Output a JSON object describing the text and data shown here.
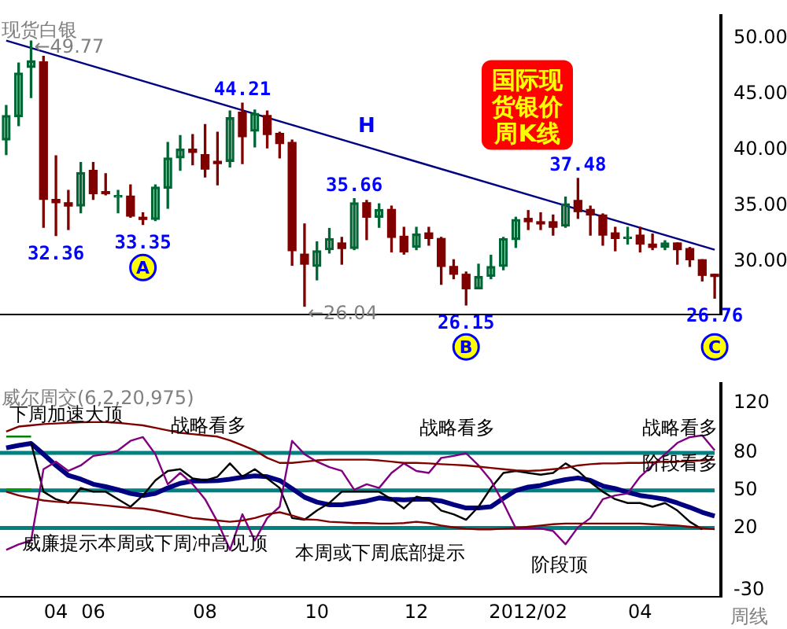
{
  "chart_data": [
    {
      "type": "candlestick",
      "title": "现货白银",
      "subtitle": "国际现货银价周K线",
      "categories": [
        null,
        null,
        null,
        null,
        "04",
        null,
        null,
        "06",
        null,
        null,
        null,
        null,
        null,
        null,
        null,
        null,
        "08",
        null,
        null,
        null,
        null,
        null,
        null,
        null,
        null,
        "10",
        null,
        null,
        null,
        null,
        null,
        null,
        null,
        "12",
        null,
        null,
        null,
        null,
        null,
        null,
        null,
        null,
        "2012/02",
        null,
        null,
        null,
        null,
        null,
        null,
        null,
        null,
        "04",
        null,
        null,
        null,
        null,
        null,
        null
      ],
      "ohlc": [
        [
          40.9,
          44.0,
          39.6,
          43.1
        ],
        [
          43.0,
          47.8,
          42.2,
          46.9
        ],
        [
          47.4,
          49.77,
          44.7,
          48.0
        ],
        [
          47.9,
          48.4,
          33.1,
          35.6
        ],
        [
          35.6,
          39.5,
          32.36,
          35.3
        ],
        [
          35.3,
          36.4,
          32.9,
          35.0
        ],
        [
          35.0,
          38.9,
          34.4,
          38.0
        ],
        [
          38.2,
          38.9,
          35.6,
          36.1
        ],
        [
          36.3,
          37.9,
          36.0,
          36.1
        ],
        [
          35.8,
          36.4,
          34.4,
          35.9
        ],
        [
          35.9,
          36.9,
          34.0,
          34.1
        ],
        [
          34.0,
          34.4,
          33.35,
          33.8
        ],
        [
          33.8,
          36.9,
          33.7,
          36.7
        ],
        [
          36.6,
          40.7,
          34.8,
          39.3
        ],
        [
          39.3,
          41.3,
          38.2,
          40.1
        ],
        [
          40.1,
          41.4,
          38.7,
          39.8
        ],
        [
          39.6,
          42.3,
          37.6,
          38.3
        ],
        [
          39.0,
          41.6,
          36.9,
          38.8
        ],
        [
          39.0,
          43.5,
          38.5,
          42.9
        ],
        [
          43.4,
          44.21,
          38.8,
          41.2
        ],
        [
          41.7,
          43.6,
          40.3,
          43.3
        ],
        [
          43.1,
          43.5,
          40.2,
          41.4
        ],
        [
          41.5,
          41.6,
          39.3,
          40.6
        ],
        [
          40.7,
          40.9,
          29.7,
          31.0
        ],
        [
          30.7,
          33.4,
          26.04,
          29.8
        ],
        [
          29.6,
          31.8,
          28.4,
          31.0
        ],
        [
          31.1,
          33.0,
          30.8,
          32.1
        ],
        [
          31.7,
          32.2,
          29.8,
          31.2
        ],
        [
          31.2,
          35.66,
          31.1,
          35.3
        ],
        [
          35.3,
          35.5,
          32.0,
          34.0
        ],
        [
          34.0,
          35.2,
          33.1,
          34.7
        ],
        [
          34.7,
          35.0,
          30.9,
          32.2
        ],
        [
          32.3,
          33.1,
          30.7,
          30.9
        ],
        [
          31.3,
          33.1,
          31.1,
          32.5
        ],
        [
          32.6,
          33.1,
          31.5,
          32.1
        ],
        [
          32.1,
          32.2,
          28.0,
          29.6
        ],
        [
          29.6,
          30.2,
          28.5,
          28.9
        ],
        [
          28.9,
          29.1,
          26.15,
          27.6
        ],
        [
          27.6,
          29.8,
          27.6,
          28.7
        ],
        [
          28.7,
          30.6,
          28.5,
          29.6
        ],
        [
          29.6,
          32.2,
          29.3,
          32.1
        ],
        [
          32.0,
          34.0,
          31.3,
          33.8
        ],
        [
          33.9,
          34.6,
          32.9,
          33.6
        ],
        [
          33.6,
          34.4,
          32.9,
          33.4
        ],
        [
          33.6,
          34.2,
          32.4,
          33.1
        ],
        [
          33.2,
          35.8,
          33.1,
          35.2
        ],
        [
          35.5,
          37.48,
          33.9,
          34.5
        ],
        [
          34.7,
          35.0,
          32.4,
          34.2
        ],
        [
          34.2,
          34.3,
          31.5,
          32.4
        ],
        [
          32.6,
          33.1,
          31.0,
          32.1
        ],
        [
          32.1,
          33.1,
          31.6,
          32.2
        ],
        [
          32.4,
          33.1,
          30.9,
          31.6
        ],
        [
          31.6,
          32.5,
          31.1,
          31.3
        ],
        [
          31.3,
          31.9,
          31.1,
          31.7
        ],
        [
          31.7,
          31.7,
          29.8,
          31.1
        ],
        [
          31.2,
          31.3,
          29.6,
          30.2
        ],
        [
          30.2,
          30.2,
          28.3,
          28.8
        ],
        [
          28.9,
          28.9,
          26.76,
          28.7
        ]
      ],
      "colors": [
        "#006633",
        "#006633",
        "#006633",
        "#800000",
        "#800000",
        "#800000",
        "#006633",
        "#800000",
        "#800000",
        "#006633",
        "#800000",
        "#800000",
        "#006633",
        "#006633",
        "#006633",
        "#800000",
        "#800000",
        "#800000",
        "#006633",
        "#800000",
        "#006633",
        "#800000",
        "#800000",
        "#800000",
        "#800000",
        "#006633",
        "#006633",
        "#800000",
        "#006633",
        "#800000",
        "#006633",
        "#800000",
        "#800000",
        "#006633",
        "#800000",
        "#800000",
        "#800000",
        "#800000",
        "#006633",
        "#006633",
        "#006633",
        "#006633",
        "#800000",
        "#800000",
        "#800000",
        "#006633",
        "#800000",
        "#800000",
        "#800000",
        "#800000",
        "#006633",
        "#800000",
        "#800000",
        "#006633",
        "#800000",
        "#800000",
        "#800000",
        "#800000"
      ],
      "series": [
        {
          "type": "line",
          "color": "#000080",
          "values": [
            49.8,
            null,
            null,
            null,
            null,
            null,
            null,
            null,
            null,
            null,
            null,
            null,
            null,
            null,
            null,
            null,
            null,
            null,
            null,
            null,
            null,
            null,
            null,
            null,
            null,
            null,
            null,
            null,
            null,
            null,
            null,
            null,
            null,
            null,
            null,
            null,
            null,
            null,
            null,
            null,
            null,
            null,
            null,
            null,
            null,
            null,
            null,
            null,
            null,
            null,
            null,
            null,
            null,
            null,
            null,
            null,
            null,
            31.1
          ]
        }
      ],
      "ylim": [
        25.3,
        52
      ],
      "yticks": [
        {
          "value": 30,
          "label": "30.00"
        },
        {
          "value": 35,
          "label": "35.00"
        },
        {
          "value": 40,
          "label": "40.00"
        },
        {
          "value": 45,
          "label": "45.00"
        },
        {
          "value": 50,
          "label": "50.00"
        }
      ],
      "tick_labels": "y",
      "grid": false,
      "legend": false,
      "marker": "none",
      "annotations": [
        "←49.77",
        {
          "text": "32.36",
          "y": 32.36
        },
        {
          "text": "33.35",
          "y": 33.35
        },
        {
          "text": "44.21",
          "y": 44.21
        },
        "←26.04",
        {
          "text": "35.66",
          "y": 35.66
        },
        {
          "text": "26.15",
          "y": 26.15
        },
        {
          "text": "37.48",
          "y": 37.48
        },
        {
          "text": "26.76",
          "y": 26.76
        },
        "H",
        "A",
        "B",
        "C"
      ]
    },
    {
      "type": "line",
      "title": "威尔周交(6,2,20,975)",
      "categories": [
        null,
        null,
        null,
        null,
        "04",
        null,
        null,
        "06",
        null,
        null,
        null,
        null,
        null,
        null,
        null,
        null,
        "08",
        null,
        null,
        null,
        null,
        null,
        null,
        null,
        null,
        "10",
        null,
        null,
        null,
        null,
        null,
        null,
        null,
        "12",
        null,
        null,
        null,
        null,
        null,
        null,
        null,
        null,
        "2012/02",
        null,
        null,
        null,
        null,
        null,
        null,
        null,
        null,
        "04",
        null,
        null,
        null,
        null,
        null,
        null
      ],
      "series": [
        {
          "color": "#000080",
          "values": [
            84,
            86,
            87.5,
            79,
            70,
            62,
            59,
            55,
            53,
            50.6,
            47.6,
            46,
            47.6,
            52,
            55.7,
            57.5,
            57.5,
            57.8,
            59,
            60.5,
            61.7,
            61,
            58,
            51.5,
            44.6,
            40.7,
            38.6,
            38.6,
            40,
            41.6,
            44,
            43,
            42.5,
            43,
            43,
            41.6,
            38.6,
            36,
            36,
            37,
            43.7,
            50,
            52.7,
            54,
            56.6,
            58.7,
            60,
            58,
            53.6,
            51.5,
            48.5,
            46,
            44.6,
            43,
            40,
            36.5,
            32.6,
            29.6
          ]
        },
        {
          "color": "#000000",
          "values": [
            null,
            null,
            88,
            49,
            43,
            40,
            52,
            49,
            49,
            43,
            37,
            46,
            58,
            65.6,
            67,
            59.6,
            58,
            61,
            71.6,
            61,
            67,
            59.6,
            52,
            28,
            26.6,
            34,
            40,
            49,
            49,
            49,
            49,
            43,
            35.6,
            45,
            43,
            34,
            31,
            26.6,
            37,
            52,
            64,
            65.6,
            64,
            62.6,
            64,
            71.6,
            65.6,
            56.6,
            49,
            43,
            40,
            40,
            37,
            40,
            34,
            25,
            19,
            null
          ]
        },
        {
          "color": "#800080",
          "values": [
            2.6,
            7,
            10,
            67,
            73,
            65.6,
            70,
            77.6,
            79,
            82,
            89.6,
            92.6,
            79,
            55,
            64,
            55,
            43,
            25,
            2.6,
            31,
            10,
            28,
            37,
            89.6,
            79,
            73,
            68.6,
            65.6,
            50.6,
            55,
            52,
            64,
            71.6,
            65.6,
            64,
            76,
            77.6,
            79.7,
            70,
            58,
            40,
            19.7,
            19.7,
            19.7,
            17.6,
            7,
            20.6,
            28,
            43,
            46,
            47.6,
            61,
            70,
            79,
            88,
            92.6,
            94,
            82
          ]
        },
        {
          "color": "#800000",
          "values": [
            97,
            101,
            102,
            103,
            103.5,
            104,
            104.5,
            104.6,
            104.6,
            104,
            103,
            102,
            100,
            98,
            96,
            95,
            94,
            93,
            90,
            86,
            82,
            76,
            72,
            72,
            73,
            74,
            74.6,
            74.6,
            74.6,
            74.6,
            74,
            73,
            72,
            72,
            71.6,
            71,
            70.5,
            70,
            69,
            68,
            67,
            66,
            65.6,
            66,
            67,
            68,
            70,
            71,
            71.6,
            71.6,
            72,
            72,
            72.5,
            73,
            73,
            73.5,
            74,
            74.6
          ]
        },
        {
          "color": "#800000",
          "values": [
            49,
            46,
            44,
            42,
            41,
            40.5,
            40,
            39,
            38,
            37,
            36,
            35.6,
            34,
            32,
            30,
            28,
            27,
            26,
            25,
            26,
            28,
            31,
            32.6,
            30,
            27,
            26.6,
            25,
            24.5,
            24,
            24,
            23.6,
            23.6,
            24,
            25,
            24,
            22,
            20.5,
            19.5,
            19,
            19,
            19.5,
            20,
            21,
            22,
            23,
            23.6,
            23.6,
            23.6,
            23.6,
            23.6,
            23.6,
            23.6,
            23,
            22.5,
            22,
            21,
            20,
            19
          ]
        },
        {
          "color": "#008000",
          "values": [
            93,
            93,
            93,
            null,
            null,
            null,
            null,
            null,
            null,
            null,
            null,
            null,
            null,
            null,
            null,
            null,
            null,
            null,
            null,
            null,
            null,
            null,
            null,
            null,
            null,
            null,
            null,
            null,
            null,
            null,
            null,
            null,
            null,
            null,
            null,
            null,
            null,
            null,
            null,
            null,
            null,
            null,
            null,
            null,
            null,
            null,
            null,
            null,
            null,
            null,
            null,
            null,
            null,
            null,
            null,
            null,
            null,
            null
          ]
        },
        {
          "color": "#00a000",
          "values": [
            51,
            51,
            51,
            null,
            null,
            null,
            null,
            null,
            null,
            null,
            null,
            null,
            null,
            null,
            null,
            null,
            null,
            null,
            null,
            null,
            null,
            null,
            null,
            null,
            null,
            null,
            null,
            null,
            null,
            null,
            null,
            null,
            null,
            null,
            null,
            null,
            null,
            null,
            null,
            null,
            null,
            null,
            null,
            null,
            null,
            null,
            null,
            null,
            null,
            null,
            null,
            null,
            null,
            null,
            null,
            null,
            null,
            null
          ]
        }
      ],
      "ylim": [
        -35,
        135
      ],
      "yticks": [
        120,
        80,
        50,
        20,
        -30
      ],
      "ref_lines": [
        {
          "axis": "y",
          "value": 80,
          "color": "#008080"
        },
        {
          "axis": "y",
          "value": 50,
          "color": "#008080"
        },
        {
          "axis": "y",
          "value": 20,
          "color": "#008080"
        }
      ],
      "grid": false,
      "legend": false,
      "marker": "none",
      "annotations": [
        "下周加速大顶",
        "战略看多",
        "威廉提示本周或下周冲高见顶",
        "本周或下周底部提示",
        "战略看多",
        "阶段顶",
        "战略看多",
        "阶段看多",
        "周线"
      ]
    }
  ]
}
